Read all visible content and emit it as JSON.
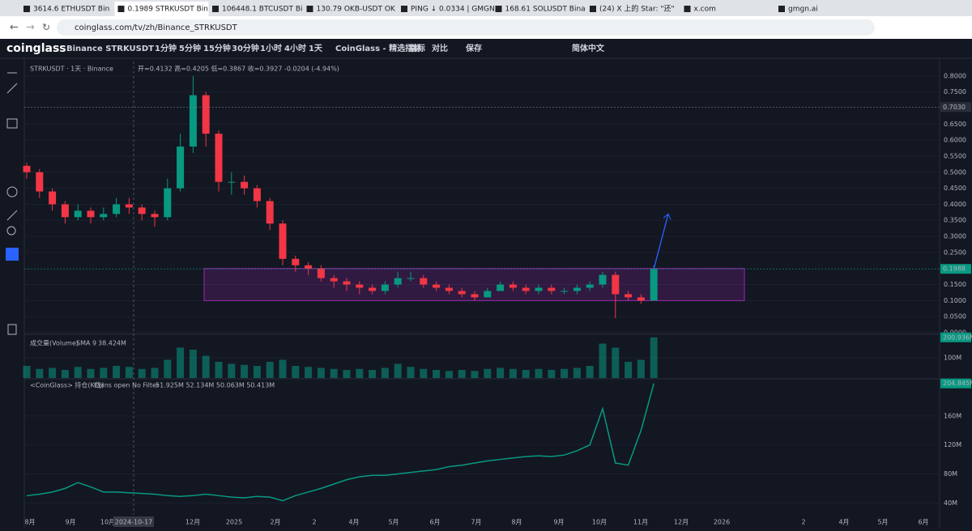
{
  "browser": {
    "tabs": [
      "3614.6 ETHUSDT Bin",
      "0.1989 STRKUSDT Bin",
      "106448.1 BTCUSDT Bi",
      "130.79 OKB-USDT OK",
      "PING ↓ 0.0334 | GMGN",
      "168.61 SOLUSDT Bina",
      "(24) X 上的 Star: \"还\"",
      "x.com",
      "gmgn.ai"
    ],
    "url": "coinglass.com/tv/zh/Binance_STRKUSDT"
  },
  "toolbar": {
    "logo": "coinglass",
    "symbol": "Binance STRKUSDT",
    "intervals": [
      "1分钟",
      "5分钟",
      "15分钟",
      "30分钟",
      "1小时",
      "4小时",
      "1天"
    ],
    "items": [
      "CoinGlass - 精选指标",
      "指标",
      "对比",
      "保存"
    ],
    "language": "简体中文"
  },
  "legend": {
    "symbol": "STRKUSDT · 1天 · Binance",
    "ohlc": "开=0.4132 高=0.4205 低=0.3867 收=0.3927 -0.0204 (-4.94%)",
    "volume_name": "成交量(Volume)",
    "volume_sma": "SMA 9",
    "volume_value": "38.424M",
    "oi_name": "<CoinGlass> 持仓(K线)",
    "oi_filter": "Coins open No Filter",
    "oi_values": "51.925M 52.134M 50.063M 50.413M"
  },
  "time_axis": {
    "labels": [
      "8月",
      "9月",
      "10月",
      "2024-10-17",
      "12月",
      "2025",
      "2月",
      "2",
      "4月",
      "5月",
      "6月",
      "7月",
      "8月",
      "9月",
      "10月",
      "11月",
      "12月",
      "2026",
      "2",
      "4月",
      "5月",
      "6月"
    ]
  },
  "chart_data": [
    {
      "type": "candlestick",
      "up_color": "#089981",
      "down_color": "#f23645",
      "ylim": [
        0,
        0.845
      ],
      "open": [
        0.52,
        0.5,
        0.44,
        0.4,
        0.36,
        0.38,
        0.36,
        0.37,
        0.4,
        0.39,
        0.37,
        0.36,
        0.45,
        0.58,
        0.74,
        0.62,
        0.47,
        0.47,
        0.45,
        0.41,
        0.34,
        0.23,
        0.21,
        0.2,
        0.17,
        0.16,
        0.15,
        0.14,
        0.13,
        0.15,
        0.17,
        0.17,
        0.15,
        0.14,
        0.13,
        0.12,
        0.11,
        0.13,
        0.15,
        0.14,
        0.13,
        0.14,
        0.13,
        0.13,
        0.14,
        0.15,
        0.18,
        0.12,
        0.11,
        0.1
      ],
      "high": [
        0.53,
        0.51,
        0.45,
        0.41,
        0.4,
        0.39,
        0.39,
        0.42,
        0.42,
        0.4,
        0.38,
        0.48,
        0.62,
        0.8,
        0.75,
        0.63,
        0.5,
        0.49,
        0.46,
        0.42,
        0.35,
        0.24,
        0.22,
        0.21,
        0.18,
        0.17,
        0.16,
        0.15,
        0.16,
        0.19,
        0.19,
        0.18,
        0.16,
        0.15,
        0.14,
        0.13,
        0.14,
        0.16,
        0.16,
        0.15,
        0.15,
        0.15,
        0.14,
        0.15,
        0.16,
        0.19,
        0.19,
        0.13,
        0.12,
        0.21
      ],
      "low": [
        0.48,
        0.42,
        0.38,
        0.34,
        0.35,
        0.34,
        0.35,
        0.36,
        0.37,
        0.35,
        0.33,
        0.35,
        0.44,
        0.56,
        0.58,
        0.44,
        0.43,
        0.43,
        0.39,
        0.32,
        0.21,
        0.19,
        0.18,
        0.16,
        0.14,
        0.13,
        0.12,
        0.12,
        0.12,
        0.14,
        0.16,
        0.14,
        0.13,
        0.12,
        0.11,
        0.1,
        0.11,
        0.13,
        0.13,
        0.12,
        0.12,
        0.12,
        0.12,
        0.12,
        0.13,
        0.14,
        0.045,
        0.1,
        0.09,
        0.1
      ],
      "close": [
        0.5,
        0.44,
        0.4,
        0.36,
        0.38,
        0.36,
        0.37,
        0.4,
        0.39,
        0.37,
        0.36,
        0.45,
        0.58,
        0.74,
        0.62,
        0.47,
        0.47,
        0.45,
        0.41,
        0.34,
        0.23,
        0.21,
        0.2,
        0.17,
        0.16,
        0.15,
        0.14,
        0.13,
        0.15,
        0.17,
        0.17,
        0.15,
        0.14,
        0.13,
        0.12,
        0.11,
        0.13,
        0.15,
        0.14,
        0.13,
        0.14,
        0.13,
        0.13,
        0.14,
        0.15,
        0.18,
        0.12,
        0.11,
        0.1,
        0.1988
      ],
      "yticks": [
        {
          "value": 0.8,
          "label": "0.8000"
        },
        {
          "value": 0.75,
          "label": "0.7500"
        },
        {
          "value": 0.65,
          "label": "0.6500"
        },
        {
          "value": 0.6,
          "label": "0.6000"
        },
        {
          "value": 0.55,
          "label": "0.5500"
        },
        {
          "value": 0.5,
          "label": "0.5000"
        },
        {
          "value": 0.45,
          "label": "0.4500"
        },
        {
          "value": 0.4,
          "label": "0.4000"
        },
        {
          "value": 0.35,
          "label": "0.3500"
        },
        {
          "value": 0.3,
          "label": "0.3000"
        },
        {
          "value": 0.25,
          "label": "0.2500"
        },
        {
          "value": 0.15,
          "label": "0.1500"
        },
        {
          "value": 0.1,
          "label": "0.1000"
        },
        {
          "value": 0.05,
          "label": "0.0500"
        },
        {
          "value": 0,
          "label": "0.0000"
        }
      ],
      "markers": [
        {
          "value": 0.703,
          "label": "0.7030"
        },
        {
          "value": 0.1988,
          "label": "0.1988"
        }
      ],
      "zone": [
        0.1,
        0.2
      ],
      "target": 0.37
    },
    {
      "type": "bar",
      "color": "#089981",
      "ylim": [
        0,
        208
      ],
      "values": [
        60,
        45,
        50,
        40,
        55,
        45,
        50,
        60,
        55,
        45,
        50,
        90,
        150,
        140,
        110,
        80,
        70,
        65,
        60,
        80,
        90,
        60,
        55,
        50,
        45,
        40,
        45,
        40,
        50,
        70,
        55,
        45,
        40,
        35,
        40,
        35,
        45,
        50,
        45,
        40,
        45,
        40,
        45,
        50,
        60,
        170,
        150,
        80,
        90,
        200.936
      ],
      "yticks": [
        {
          "value": 100,
          "label": "100M"
        }
      ],
      "last_label": {
        "value": 200.936,
        "label": "200.936M"
      }
    },
    {
      "type": "line",
      "color": "#089981",
      "ylim": [
        28,
        209
      ],
      "values": [
        50,
        52,
        55,
        60,
        68,
        62,
        55,
        55,
        54,
        53,
        52,
        50,
        49,
        50,
        52,
        50,
        48,
        47,
        49,
        48,
        43,
        50,
        55,
        60,
        66,
        72,
        76,
        78,
        78,
        80,
        82,
        84,
        86,
        90,
        92,
        95,
        98,
        100,
        102,
        104,
        105,
        104,
        106,
        112,
        120,
        170,
        95,
        92,
        140,
        204.845
      ],
      "yticks": [
        {
          "value": 160,
          "label": "160M"
        },
        {
          "value": 120,
          "label": "120M"
        },
        {
          "value": 80,
          "label": "80M"
        },
        {
          "value": 40,
          "label": "40M"
        }
      ],
      "last_label": {
        "value": 204.845,
        "label": "204.845M"
      }
    }
  ]
}
